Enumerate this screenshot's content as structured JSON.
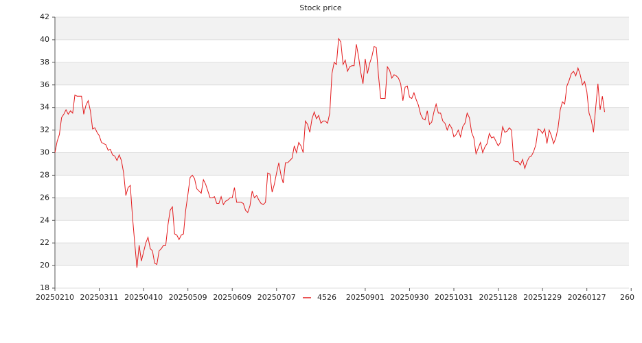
{
  "chart_data": {
    "type": "line",
    "title": "Stock price",
    "series": [
      {
        "name": "4526",
        "color": "#e31a1c",
        "values": [
          30.0,
          31.0,
          31.6,
          33.1,
          33.4,
          33.8,
          33.4,
          33.7,
          33.5,
          35.1,
          35.0,
          35.0,
          35.0,
          33.4,
          34.2,
          34.6,
          33.7,
          32.1,
          32.2,
          31.8,
          31.5,
          30.9,
          30.8,
          30.7,
          30.2,
          30.3,
          29.8,
          29.7,
          29.3,
          29.8,
          29.3,
          28.2,
          26.2,
          26.9,
          27.1,
          24.3,
          22.0,
          19.8,
          21.8,
          20.4,
          21.2,
          22.0,
          22.5,
          21.5,
          21.3,
          20.2,
          20.1,
          21.3,
          21.5,
          21.8,
          21.8,
          23.6,
          24.9,
          25.2,
          22.8,
          22.7,
          22.3,
          22.7,
          22.8,
          24.9,
          26.3,
          27.8,
          28.0,
          27.7,
          26.8,
          26.6,
          26.4,
          27.6,
          27.2,
          26.6,
          26.0,
          26.0,
          26.1,
          25.5,
          25.5,
          26.1,
          25.4,
          25.7,
          25.8,
          26.0,
          26.0,
          26.9,
          25.6,
          25.6,
          25.6,
          25.5,
          24.9,
          24.7,
          25.3,
          26.6,
          26.0,
          26.2,
          25.8,
          25.5,
          25.4,
          25.6,
          28.2,
          28.1,
          26.5,
          27.2,
          28.2,
          29.1,
          28.0,
          27.3,
          29.1,
          29.1,
          29.3,
          29.5,
          30.6,
          30.0,
          30.9,
          30.6,
          30.0,
          32.8,
          32.5,
          31.8,
          33.0,
          33.6,
          33.0,
          33.3,
          32.6,
          32.8,
          32.8,
          32.6,
          33.5,
          37.0,
          38.0,
          37.8,
          40.1,
          39.8,
          37.8,
          38.2,
          37.2,
          37.6,
          37.7,
          37.7,
          39.6,
          38.5,
          37.1,
          36.1,
          38.3,
          37.0,
          37.9,
          38.5,
          39.4,
          39.3,
          36.8,
          34.8,
          34.8,
          34.8,
          37.6,
          37.3,
          36.6,
          36.9,
          36.8,
          36.6,
          36.1,
          34.6,
          35.8,
          35.9,
          34.9,
          34.8,
          35.3,
          34.7,
          34.2,
          33.4,
          33.0,
          32.9,
          33.7,
          32.5,
          32.7,
          33.6,
          34.3,
          33.5,
          33.5,
          32.8,
          32.6,
          32.0,
          32.5,
          32.2,
          31.4,
          31.6,
          32.0,
          31.4,
          32.3,
          32.6,
          33.5,
          33.1,
          31.8,
          31.3,
          29.9,
          30.4,
          30.9,
          30.0,
          30.5,
          30.8,
          31.7,
          31.3,
          31.4,
          31.0,
          30.6,
          30.9,
          32.3,
          31.8,
          31.9,
          32.2,
          32.0,
          29.3,
          29.2,
          29.2,
          28.9,
          29.4,
          28.6,
          29.2,
          29.6,
          29.7,
          30.1,
          30.7,
          32.1,
          32.0,
          31.7,
          32.1,
          30.8,
          32.0,
          31.5,
          30.8,
          31.3,
          32.2,
          33.8,
          34.5,
          34.3,
          35.9,
          36.4,
          37.0,
          37.2,
          36.8,
          37.5,
          36.9,
          36.0,
          36.3,
          35.4,
          33.5,
          32.9,
          31.8,
          34.0,
          36.1,
          33.8,
          35.0,
          33.6
        ]
      }
    ],
    "xlim": [
      0,
      259
    ],
    "xticks": [
      {
        "value": 0,
        "label": "20250210"
      },
      {
        "value": 20,
        "label": "20250311"
      },
      {
        "value": 40,
        "label": "20250410"
      },
      {
        "value": 60,
        "label": "20250509"
      },
      {
        "value": 80,
        "label": "20250609"
      },
      {
        "value": 100,
        "label": "20250707"
      },
      {
        "value": 140,
        "label": "20250901"
      },
      {
        "value": 160,
        "label": "20250930"
      },
      {
        "value": 180,
        "label": "20251031"
      },
      {
        "value": 200,
        "label": "20251128"
      },
      {
        "value": 220,
        "label": "20251229"
      },
      {
        "value": 240,
        "label": "20260127"
      },
      {
        "value": 260,
        "label": "260"
      }
    ],
    "ylim": [
      18,
      42
    ],
    "yticks": [
      18,
      20,
      22,
      24,
      26,
      28,
      30,
      32,
      34,
      36,
      38,
      40,
      42
    ],
    "grid": true,
    "band_color": "#f2f2f2",
    "legend": "bottom"
  }
}
